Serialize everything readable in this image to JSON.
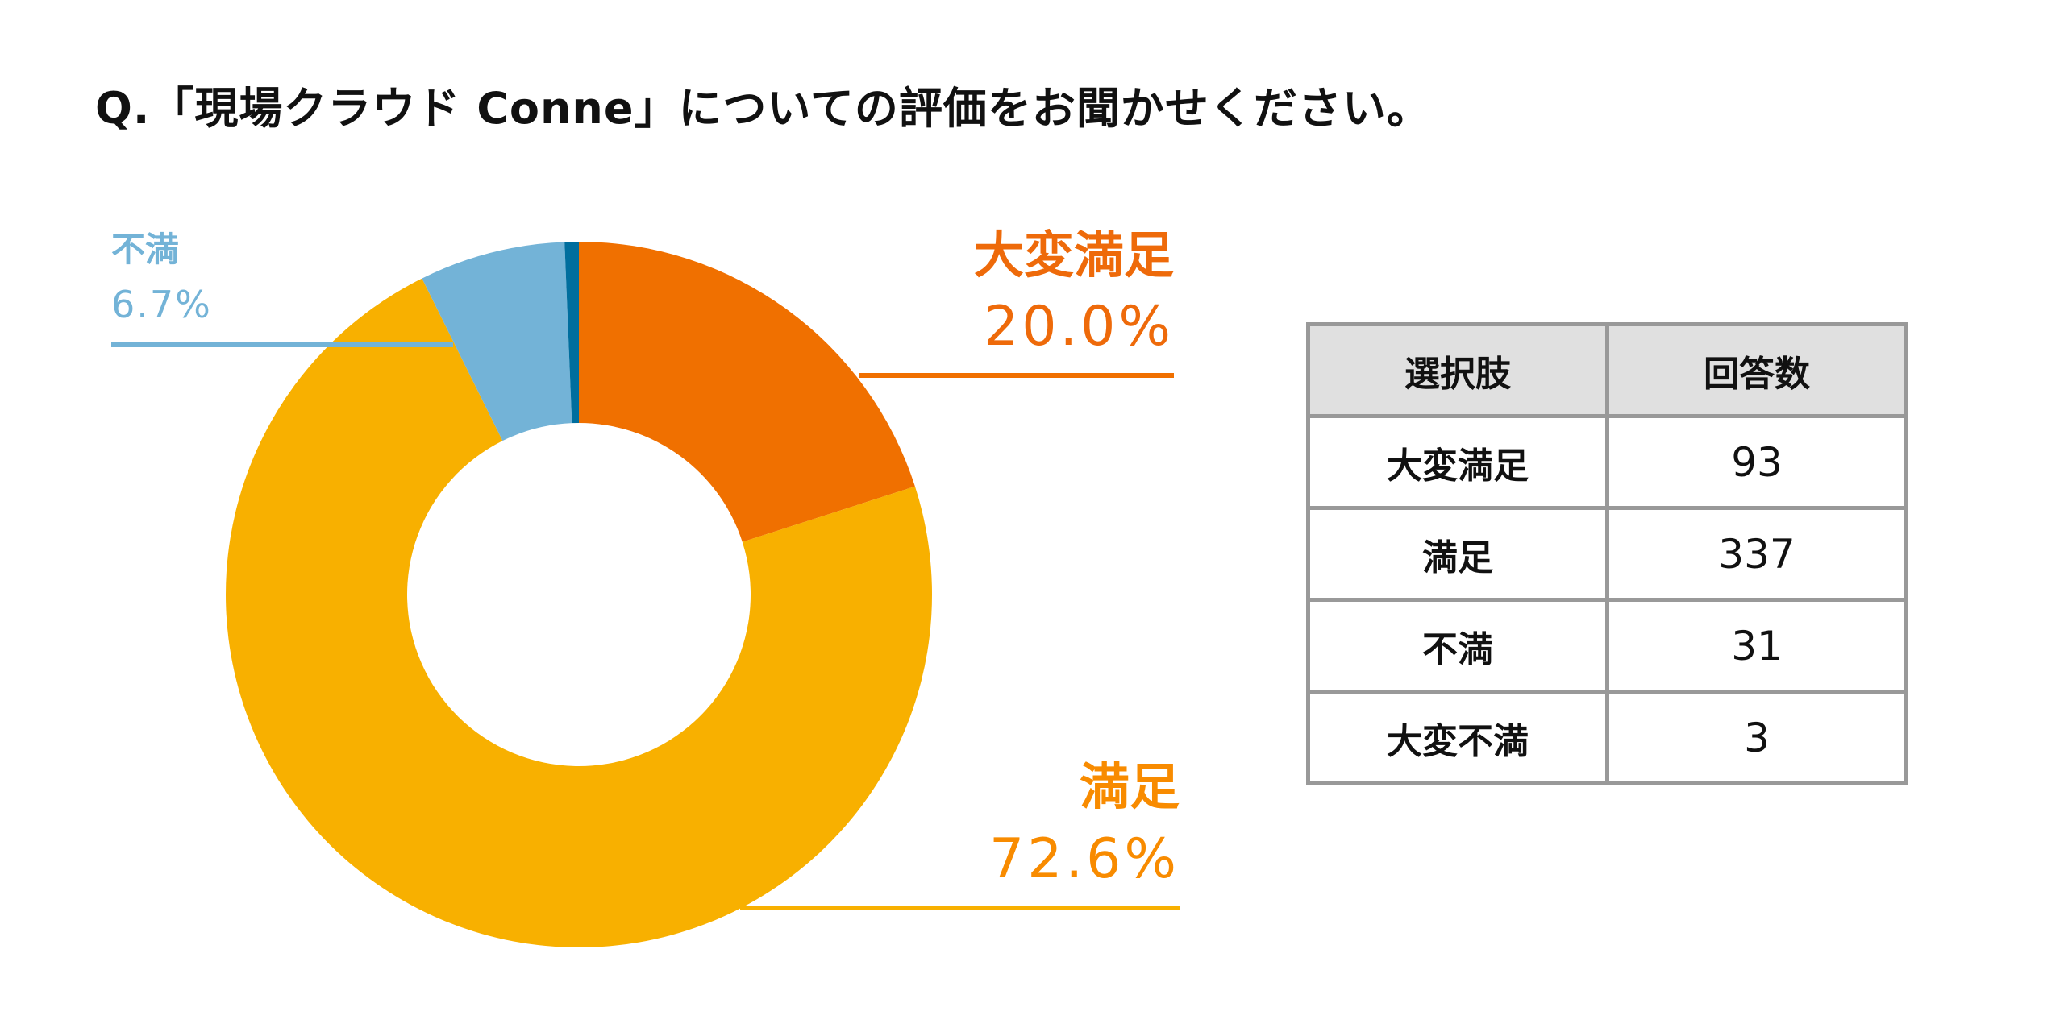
{
  "title": "Q.「現場クラウド Conne」についての評価をお聞かせください。",
  "chart_data": {
    "type": "pie",
    "style": "donut",
    "title": "Q.「現場クラウド Conne」についての評価をお聞かせください。",
    "start": "12 o'clock, clockwise",
    "categories": [
      "大変満足",
      "満足",
      "不満",
      "大変不満"
    ],
    "values": [
      93,
      337,
      31,
      3
    ],
    "colors": [
      "#F07000",
      "#F8B000",
      "#73B3D7",
      "#006E9E"
    ],
    "labels": [
      {
        "name": "大変満足",
        "percent": "20.0%",
        "color": "#EE6A0A"
      },
      {
        "name": "満足",
        "percent": "72.6%",
        "color": "#F88B00"
      },
      {
        "name": "不満",
        "percent": "6.7%",
        "color": "#73B3D7"
      }
    ]
  },
  "table": {
    "headers": [
      "選択肢",
      "回答数"
    ],
    "rows": [
      [
        "大変満足",
        "93"
      ],
      [
        "満足",
        "337"
      ],
      [
        "不満",
        "31"
      ],
      [
        "大変不満",
        "3"
      ]
    ]
  }
}
